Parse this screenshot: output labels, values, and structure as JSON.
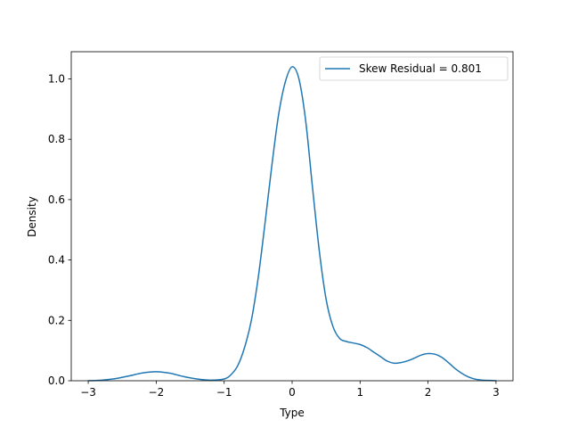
{
  "chart_data": {
    "type": "line",
    "xlabel": "Type",
    "ylabel": "Density",
    "xlim": [
      -3.25,
      3.25
    ],
    "ylim": [
      0.0,
      1.09
    ],
    "x_ticks": [
      -3,
      -2,
      -1,
      0,
      1,
      2,
      3
    ],
    "y_ticks": [
      0.0,
      0.2,
      0.4,
      0.6,
      0.8,
      1.0
    ],
    "x_tick_labels": [
      "−3",
      "−2",
      "−1",
      "0",
      "1",
      "2",
      "3"
    ],
    "y_tick_labels": [
      "0.0",
      "0.2",
      "0.4",
      "0.6",
      "0.8",
      "1.0"
    ],
    "grid": false,
    "legend_position": "top-right",
    "colors": {
      "series": "#1f77b4"
    },
    "series": [
      {
        "name": "Skew Residual = 0.801",
        "x": [
          -3.0,
          -2.8,
          -2.6,
          -2.4,
          -2.2,
          -2.0,
          -1.8,
          -1.6,
          -1.4,
          -1.2,
          -1.0,
          -0.9,
          -0.8,
          -0.7,
          -0.6,
          -0.5,
          -0.4,
          -0.3,
          -0.2,
          -0.1,
          0.0,
          0.1,
          0.2,
          0.3,
          0.4,
          0.5,
          0.6,
          0.7,
          0.8,
          0.9,
          1.0,
          1.1,
          1.2,
          1.3,
          1.4,
          1.5,
          1.6,
          1.7,
          1.8,
          1.9,
          2.0,
          2.1,
          2.2,
          2.3,
          2.4,
          2.5,
          2.6,
          2.7,
          2.8,
          2.9,
          3.0
        ],
        "y": [
          0.0,
          0.002,
          0.007,
          0.016,
          0.026,
          0.03,
          0.025,
          0.014,
          0.006,
          0.002,
          0.006,
          0.02,
          0.05,
          0.11,
          0.2,
          0.34,
          0.52,
          0.71,
          0.88,
          0.99,
          1.04,
          1.0,
          0.86,
          0.64,
          0.43,
          0.27,
          0.18,
          0.14,
          0.13,
          0.125,
          0.12,
          0.11,
          0.095,
          0.08,
          0.065,
          0.058,
          0.06,
          0.066,
          0.075,
          0.085,
          0.09,
          0.088,
          0.078,
          0.06,
          0.04,
          0.024,
          0.012,
          0.005,
          0.002,
          0.001,
          0.0
        ]
      }
    ]
  }
}
